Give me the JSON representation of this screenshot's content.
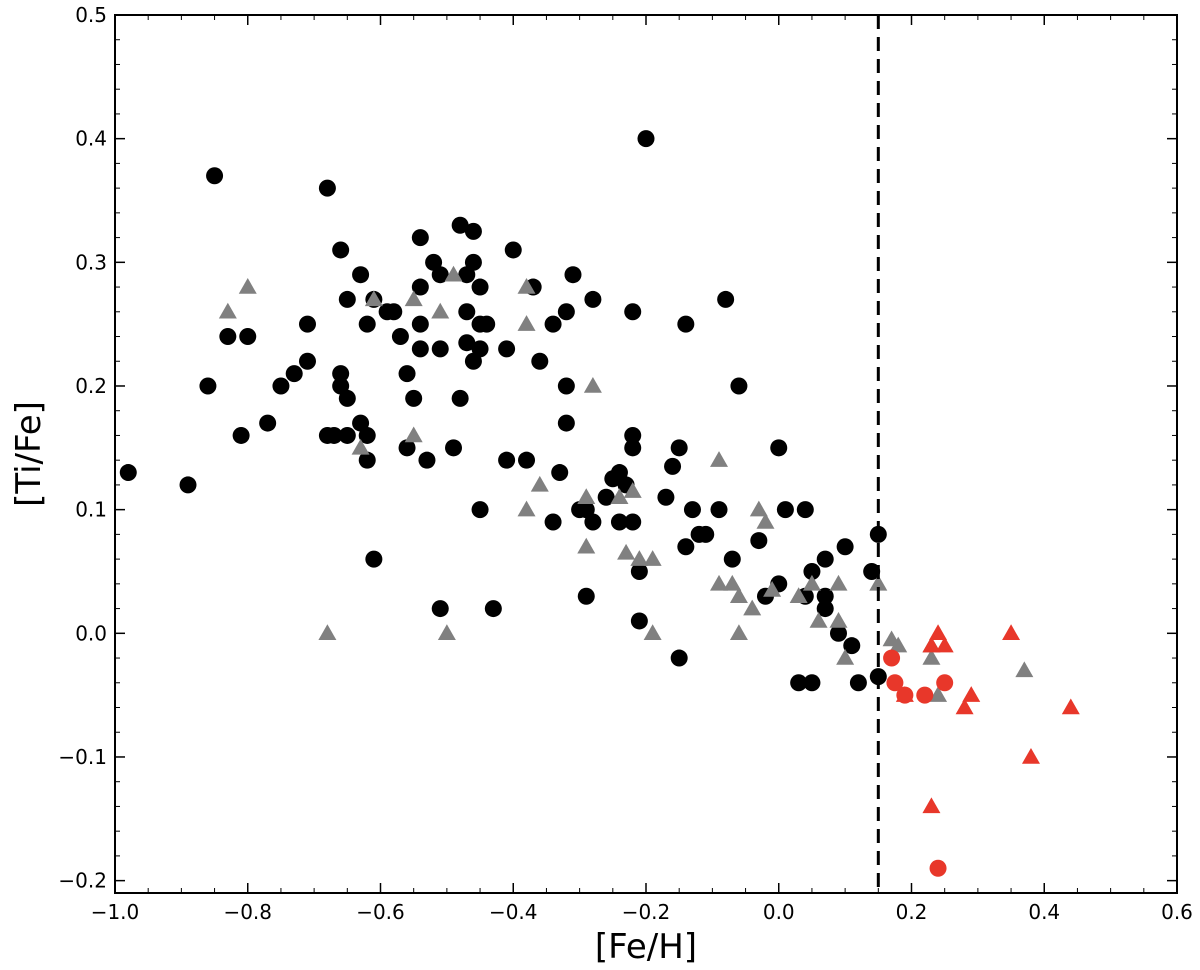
{
  "chart_data": {
    "type": "scatter",
    "xlabel": "[Fe/H]",
    "ylabel": "[Ti/Fe]",
    "xlim": [
      -1.0,
      0.6
    ],
    "ylim": [
      -0.21,
      0.5
    ],
    "x_ticks": [
      "−1.0",
      "−0.8",
      "−0.6",
      "−0.4",
      "−0.2",
      "0.0",
      "0.2",
      "0.4",
      "0.6"
    ],
    "y_ticks": [
      "−0.2",
      "−0.1",
      "0.0",
      "0.1",
      "0.2",
      "0.3",
      "0.4",
      "0.5"
    ],
    "grid": false,
    "vline_x": 0.15,
    "colors": {
      "black": "#000000",
      "gray": "#808080",
      "red": "#e8372a"
    },
    "series": [
      {
        "marker": "circle",
        "color": "#000000",
        "points": [
          [
            -0.98,
            0.13
          ],
          [
            -0.89,
            0.12
          ],
          [
            -0.86,
            0.2
          ],
          [
            -0.85,
            0.37
          ],
          [
            -0.83,
            0.24
          ],
          [
            -0.81,
            0.16
          ],
          [
            -0.8,
            0.24
          ],
          [
            -0.77,
            0.17
          ],
          [
            -0.75,
            0.2
          ],
          [
            -0.73,
            0.21
          ],
          [
            -0.71,
            0.22
          ],
          [
            -0.71,
            0.25
          ],
          [
            -0.68,
            0.36
          ],
          [
            -0.68,
            0.16
          ],
          [
            -0.67,
            0.16
          ],
          [
            -0.66,
            0.31
          ],
          [
            -0.66,
            0.21
          ],
          [
            -0.66,
            0.2
          ],
          [
            -0.65,
            0.19
          ],
          [
            -0.65,
            0.27
          ],
          [
            -0.65,
            0.16
          ],
          [
            -0.63,
            0.29
          ],
          [
            -0.63,
            0.17
          ],
          [
            -0.62,
            0.16
          ],
          [
            -0.62,
            0.14
          ],
          [
            -0.62,
            0.25
          ],
          [
            -0.61,
            0.27
          ],
          [
            -0.61,
            0.06
          ],
          [
            -0.59,
            0.26
          ],
          [
            -0.58,
            0.26
          ],
          [
            -0.57,
            0.24
          ],
          [
            -0.56,
            0.21
          ],
          [
            -0.56,
            0.15
          ],
          [
            -0.55,
            0.19
          ],
          [
            -0.54,
            0.32
          ],
          [
            -0.54,
            0.28
          ],
          [
            -0.54,
            0.25
          ],
          [
            -0.54,
            0.23
          ],
          [
            -0.53,
            0.14
          ],
          [
            -0.52,
            0.3
          ],
          [
            -0.51,
            0.29
          ],
          [
            -0.51,
            0.23
          ],
          [
            -0.51,
            0.02
          ],
          [
            -0.49,
            0.15
          ],
          [
            -0.48,
            0.33
          ],
          [
            -0.48,
            0.19
          ],
          [
            -0.47,
            0.29
          ],
          [
            -0.47,
            0.26
          ],
          [
            -0.47,
            0.235
          ],
          [
            -0.46,
            0.325
          ],
          [
            -0.46,
            0.3
          ],
          [
            -0.46,
            0.22
          ],
          [
            -0.45,
            0.25
          ],
          [
            -0.45,
            0.23
          ],
          [
            -0.45,
            0.28
          ],
          [
            -0.45,
            0.1
          ],
          [
            -0.44,
            0.25
          ],
          [
            -0.43,
            0.02
          ],
          [
            -0.41,
            0.23
          ],
          [
            -0.4,
            0.31
          ],
          [
            -0.41,
            0.14
          ],
          [
            -0.38,
            0.14
          ],
          [
            -0.37,
            0.28
          ],
          [
            -0.36,
            0.22
          ],
          [
            -0.34,
            0.25
          ],
          [
            -0.34,
            0.09
          ],
          [
            -0.33,
            0.13
          ],
          [
            -0.32,
            0.26
          ],
          [
            -0.32,
            0.2
          ],
          [
            -0.32,
            0.17
          ],
          [
            -0.31,
            0.29
          ],
          [
            -0.3,
            0.1
          ],
          [
            -0.29,
            0.1
          ],
          [
            -0.29,
            0.03
          ],
          [
            -0.28,
            0.27
          ],
          [
            -0.28,
            0.09
          ],
          [
            -0.26,
            0.11
          ],
          [
            -0.25,
            0.125
          ],
          [
            -0.24,
            0.13
          ],
          [
            -0.24,
            0.09
          ],
          [
            -0.23,
            0.12
          ],
          [
            -0.22,
            0.09
          ],
          [
            -0.22,
            0.16
          ],
          [
            -0.22,
            0.15
          ],
          [
            -0.22,
            0.26
          ],
          [
            -0.21,
            0.05
          ],
          [
            -0.21,
            0.01
          ],
          [
            -0.2,
            0.4
          ],
          [
            -0.17,
            0.11
          ],
          [
            -0.16,
            0.135
          ],
          [
            -0.15,
            0.15
          ],
          [
            -0.15,
            -0.02
          ],
          [
            -0.14,
            0.25
          ],
          [
            -0.14,
            0.07
          ],
          [
            -0.13,
            0.1
          ],
          [
            -0.12,
            0.08
          ],
          [
            -0.11,
            0.08
          ],
          [
            -0.09,
            0.1
          ],
          [
            -0.08,
            0.27
          ],
          [
            -0.07,
            0.06
          ],
          [
            -0.06,
            0.2
          ],
          [
            -0.03,
            0.075
          ],
          [
            -0.02,
            0.03
          ],
          [
            0.0,
            0.15
          ],
          [
            0.0,
            0.04
          ],
          [
            0.01,
            0.1
          ],
          [
            0.03,
            -0.04
          ],
          [
            0.04,
            0.1
          ],
          [
            0.04,
            0.03
          ],
          [
            0.05,
            0.05
          ],
          [
            0.05,
            -0.04
          ],
          [
            0.07,
            0.06
          ],
          [
            0.07,
            0.03
          ],
          [
            0.07,
            0.02
          ],
          [
            0.09,
            0.0
          ],
          [
            0.1,
            0.07
          ],
          [
            0.11,
            -0.01
          ],
          [
            0.12,
            -0.04
          ],
          [
            0.14,
            0.05
          ],
          [
            0.15,
            0.08
          ],
          [
            0.15,
            -0.035
          ]
        ]
      },
      {
        "marker": "triangle",
        "color": "#808080",
        "points": [
          [
            -0.83,
            0.26
          ],
          [
            -0.8,
            0.28
          ],
          [
            -0.68,
            0.0
          ],
          [
            -0.63,
            0.15
          ],
          [
            -0.61,
            0.27
          ],
          [
            -0.55,
            0.27
          ],
          [
            -0.55,
            0.16
          ],
          [
            -0.5,
            0.0
          ],
          [
            -0.51,
            0.26
          ],
          [
            -0.49,
            0.29
          ],
          [
            -0.38,
            0.28
          ],
          [
            -0.38,
            0.25
          ],
          [
            -0.38,
            0.1
          ],
          [
            -0.36,
            0.12
          ],
          [
            -0.29,
            0.11
          ],
          [
            -0.29,
            0.07
          ],
          [
            -0.28,
            0.2
          ],
          [
            -0.24,
            0.11
          ],
          [
            -0.23,
            0.065
          ],
          [
            -0.22,
            0.115
          ],
          [
            -0.21,
            0.06
          ],
          [
            -0.19,
            0.06
          ],
          [
            -0.19,
            0.0
          ],
          [
            -0.09,
            0.14
          ],
          [
            -0.09,
            0.04
          ],
          [
            -0.07,
            0.04
          ],
          [
            -0.06,
            0.03
          ],
          [
            -0.06,
            0.0
          ],
          [
            -0.04,
            0.02
          ],
          [
            -0.03,
            0.1
          ],
          [
            -0.02,
            0.09
          ],
          [
            -0.01,
            0.035
          ],
          [
            0.03,
            0.03
          ],
          [
            0.05,
            0.04
          ],
          [
            0.06,
            0.01
          ],
          [
            0.09,
            0.04
          ],
          [
            0.09,
            0.01
          ],
          [
            0.1,
            -0.02
          ],
          [
            0.15,
            0.04
          ],
          [
            0.17,
            -0.005
          ],
          [
            0.18,
            -0.01
          ],
          [
            0.23,
            -0.02
          ],
          [
            0.23,
            -0.01
          ],
          [
            0.24,
            -0.05
          ],
          [
            0.37,
            -0.03
          ]
        ]
      },
      {
        "marker": "circle",
        "color": "#e8372a",
        "points": [
          [
            0.17,
            -0.02
          ],
          [
            0.175,
            -0.04
          ],
          [
            0.19,
            -0.05
          ],
          [
            0.22,
            -0.05
          ],
          [
            0.25,
            -0.04
          ],
          [
            0.24,
            -0.19
          ]
        ]
      },
      {
        "marker": "triangle",
        "color": "#e8372a",
        "points": [
          [
            0.19,
            -0.05
          ],
          [
            0.23,
            -0.01
          ],
          [
            0.24,
            0.0
          ],
          [
            0.25,
            -0.01
          ],
          [
            0.28,
            -0.06
          ],
          [
            0.29,
            -0.05
          ],
          [
            0.23,
            -0.14
          ],
          [
            0.35,
            0.0
          ],
          [
            0.38,
            -0.1
          ],
          [
            0.44,
            -0.06
          ]
        ]
      }
    ]
  }
}
